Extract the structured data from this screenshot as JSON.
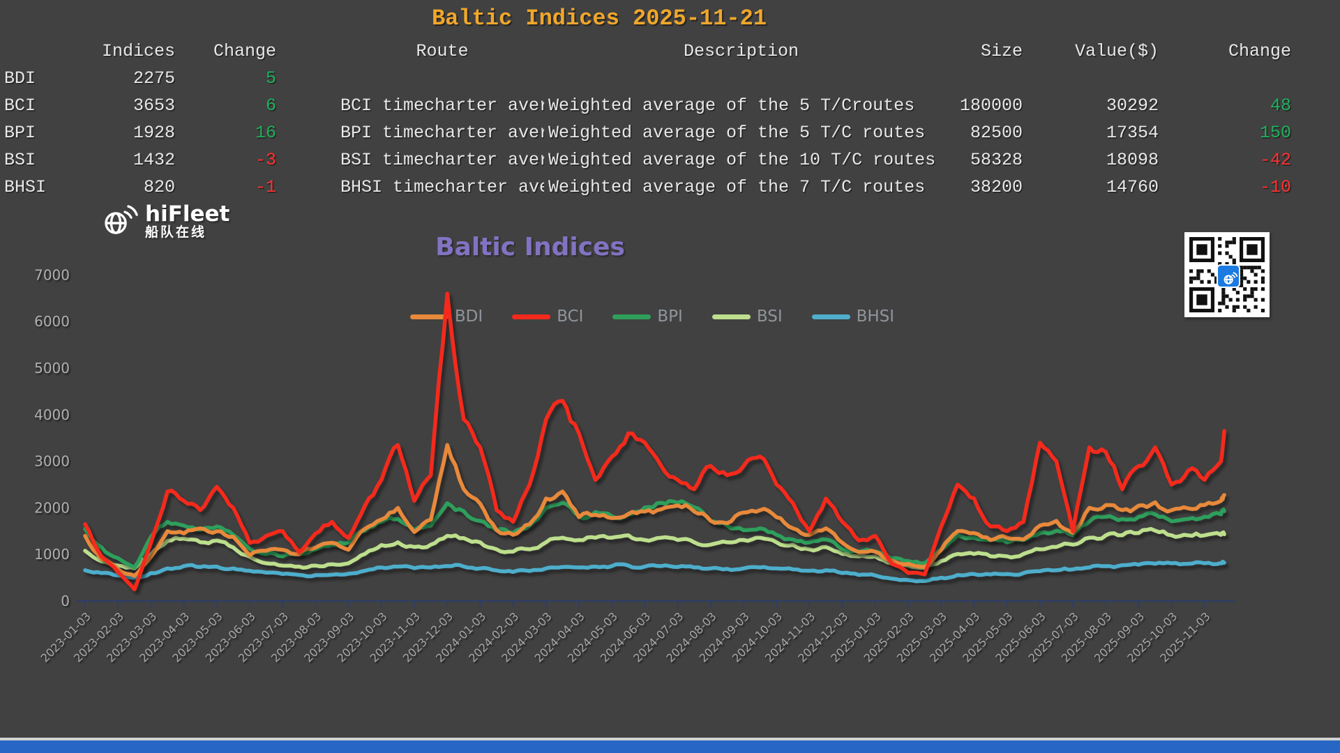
{
  "page": {
    "background": "#414141",
    "bottom_bar_color": "#2766C4"
  },
  "title": "Baltic Indices 2025-11-21",
  "table": {
    "headers": [
      "Indices",
      "Change",
      "Route",
      "Description",
      "Size",
      "Value($)",
      "Change"
    ],
    "rows": [
      {
        "name": "BDI",
        "index": "2275",
        "change": "5",
        "change_color": "green",
        "route": "",
        "description": "",
        "size": "",
        "value": "",
        "change2": "",
        "change2_color": "green"
      },
      {
        "name": "BCI",
        "index": "3653",
        "change": "6",
        "change_color": "green",
        "route": "BCI timecharter aver",
        "description": "Weighted average of the 5 T/Croutes",
        "size": "180000",
        "value": "30292",
        "change2": "48",
        "change2_color": "green"
      },
      {
        "name": "BPI",
        "index": "1928",
        "change": "16",
        "change_color": "green",
        "route": "BPI timecharter aver",
        "description": "Weighted average of the 5 T/C routes",
        "size": "82500",
        "value": "17354",
        "change2": "150",
        "change2_color": "green"
      },
      {
        "name": "BSI",
        "index": "1432",
        "change": "-3",
        "change_color": "red",
        "route": "BSI timecharter aver",
        "description": "Weighted average of the 10 T/C routes",
        "size": "58328",
        "value": "18098",
        "change2": "-42",
        "change2_color": "red"
      },
      {
        "name": "BHSI",
        "index": "820",
        "change": "-1",
        "change_color": "red",
        "route": "BHSI timecharter ave",
        "description": "Weighted average of the 7 T/C routes",
        "size": "38200",
        "value": "14760",
        "change2": "-10",
        "change2_color": "red"
      }
    ]
  },
  "logo": {
    "name": "hiFleet",
    "subtitle": "船队在线"
  },
  "chart_data": {
    "type": "line",
    "title": "Baltic Indices",
    "title_color": "#8273C2",
    "ylim": [
      0,
      7000
    ],
    "y_ticks": [
      0,
      1000,
      2000,
      3000,
      4000,
      5000,
      6000,
      7000
    ],
    "x_start": "2023-01-03",
    "x_end": "2025-11-21",
    "points_per_month": 2,
    "grid": false,
    "legend_position": "top-center",
    "x_tick_labels": [
      "2023-01-03",
      "2023-02-03",
      "2023-03-03",
      "2023-04-03",
      "2023-05-03",
      "2023-06-03",
      "2023-07-03",
      "2023-08-03",
      "2023-09-03",
      "2023-10-03",
      "2023-11-03",
      "2023-12-03",
      "2024-01-03",
      "2024-02-03",
      "2024-03-03",
      "2024-04-03",
      "2024-05-03",
      "2024-06-03",
      "2024-07-03",
      "2024-08-03",
      "2024-09-03",
      "2024-10-03",
      "2024-11-03",
      "2024-12-03",
      "2025-01-03",
      "2025-02-03",
      "2025-03-03",
      "2025-04-03",
      "2025-05-03",
      "2025-06-03",
      "2025-07-03",
      "2025-08-03",
      "2025-09-03",
      "2025-10-03",
      "2025-11-03"
    ],
    "series": [
      {
        "name": "BDI",
        "color": "#E8893B",
        "values": [
          1400,
          900,
          680,
          540,
          950,
          1500,
          1450,
          1560,
          1500,
          1380,
          980,
          1080,
          1100,
          1000,
          1150,
          1250,
          1100,
          1550,
          1750,
          2000,
          1480,
          1750,
          3350,
          2400,
          2090,
          1520,
          1420,
          1650,
          2200,
          2350,
          1800,
          1850,
          1780,
          1870,
          1920,
          1970,
          2050,
          1920,
          1720,
          1670,
          1900,
          1950,
          1800,
          1560,
          1420,
          1560,
          1250,
          1050,
          1060,
          870,
          800,
          730,
          1100,
          1500,
          1460,
          1310,
          1360,
          1320,
          1620,
          1720,
          1460,
          2000,
          2060,
          1950,
          2050,
          2120,
          1950,
          1990,
          2060,
          2150,
          2275
        ]
      },
      {
        "name": "BCI",
        "color": "#F42A1D",
        "values": [
          1650,
          950,
          620,
          250,
          1250,
          2350,
          2150,
          1950,
          2450,
          2000,
          1250,
          1400,
          1500,
          1050,
          1450,
          1700,
          1350,
          2050,
          2600,
          3350,
          2150,
          2700,
          6600,
          3900,
          3300,
          1950,
          1700,
          2500,
          3900,
          4300,
          3600,
          2600,
          3100,
          3600,
          3400,
          2900,
          2600,
          2400,
          2900,
          2700,
          2900,
          3100,
          2500,
          2100,
          1500,
          2200,
          1700,
          1300,
          1400,
          800,
          600,
          570,
          1600,
          2500,
          2200,
          1600,
          1500,
          1700,
          3400,
          3000,
          1500,
          3300,
          3200,
          2400,
          2900,
          3300,
          2500,
          2800,
          2600,
          3000,
          3653
        ]
      },
      {
        "name": "BPI",
        "color": "#2E9F5B",
        "values": [
          1550,
          1150,
          920,
          720,
          1380,
          1700,
          1620,
          1530,
          1600,
          1420,
          1120,
          1010,
          960,
          1010,
          1110,
          1210,
          1260,
          1510,
          1700,
          1760,
          1520,
          1620,
          2100,
          1930,
          1720,
          1520,
          1460,
          1620,
          2000,
          2110,
          1820,
          1910,
          1820,
          1860,
          2010,
          2110,
          2110,
          2010,
          1720,
          1620,
          1520,
          1560,
          1420,
          1320,
          1260,
          1320,
          1110,
          1060,
          1060,
          910,
          860,
          810,
          1110,
          1410,
          1360,
          1310,
          1260,
          1310,
          1460,
          1510,
          1410,
          1710,
          1810,
          1760,
          1810,
          1860,
          1710,
          1760,
          1810,
          1860,
          1928
        ]
      },
      {
        "name": "BSI",
        "color": "#BDDF8D",
        "values": [
          1080,
          850,
          760,
          700,
          1000,
          1290,
          1340,
          1260,
          1300,
          1150,
          950,
          810,
          760,
          740,
          760,
          790,
          810,
          1010,
          1200,
          1260,
          1160,
          1210,
          1400,
          1350,
          1260,
          1110,
          1060,
          1110,
          1260,
          1360,
          1310,
          1360,
          1360,
          1410,
          1310,
          1360,
          1310,
          1260,
          1210,
          1260,
          1310,
          1360,
          1260,
          1210,
          1110,
          1160,
          1010,
          960,
          960,
          810,
          760,
          710,
          860,
          1010,
          1010,
          960,
          960,
          1010,
          1110,
          1160,
          1210,
          1360,
          1410,
          1410,
          1460,
          1510,
          1410,
          1410,
          1410,
          1420,
          1432
        ]
      },
      {
        "name": "BHSI",
        "color": "#4EAECC",
        "values": [
          660,
          600,
          550,
          500,
          600,
          700,
          750,
          730,
          740,
          700,
          650,
          610,
          580,
          560,
          555,
          565,
          585,
          650,
          720,
          740,
          705,
          720,
          750,
          740,
          700,
          655,
          625,
          645,
          700,
          730,
          720,
          740,
          750,
          760,
          740,
          750,
          730,
          720,
          700,
          690,
          700,
          720,
          700,
          680,
          650,
          660,
          600,
          560,
          550,
          480,
          450,
          430,
          500,
          560,
          580,
          570,
          580,
          600,
          640,
          660,
          680,
          720,
          750,
          770,
          780,
          800,
          810,
          800,
          810,
          815,
          820
        ]
      }
    ]
  }
}
